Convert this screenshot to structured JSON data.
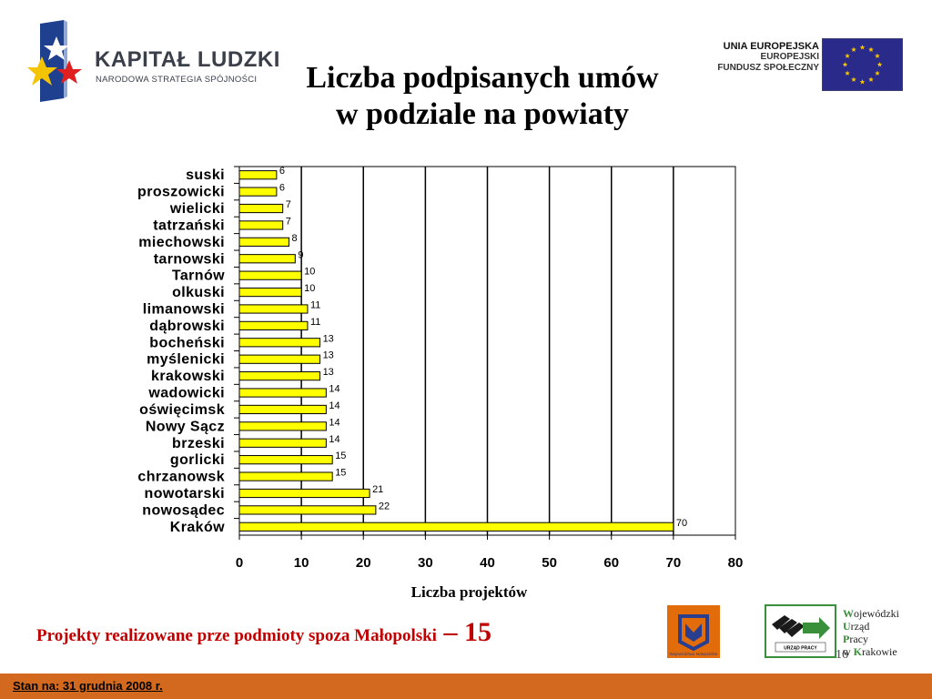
{
  "header": {
    "logo_left": {
      "name": "KAPITAŁ LUDZKI",
      "subtitle": "NARODOWA STRATEGIA SPÓJNOŚCI"
    },
    "logo_right": {
      "title": "UNIA EUROPEJSKA",
      "line1": "EUROPEJSKI",
      "line2": "FUNDUSZ SPOŁECZNY"
    },
    "title_line1": "Liczba podpisanych umów",
    "title_line2": "w podziale na powiaty"
  },
  "chart_data": {
    "type": "bar",
    "orientation": "horizontal",
    "categories": [
      "suski",
      "proszowicki",
      "wielicki",
      "tatrzański",
      "miechowski",
      "tarnowski",
      "Tarnów",
      "olkuski",
      "limanowski",
      "dąbrowski",
      "bocheński",
      "myślenicki",
      "krakowski",
      "wadowicki",
      "oświęcimsk",
      "Nowy Sącz",
      "brzeski",
      "gorlicki",
      "chrzanowsk",
      "nowotarski",
      "nowosądec",
      "Kraków"
    ],
    "values": [
      6,
      6,
      7,
      7,
      8,
      9,
      10,
      10,
      11,
      11,
      13,
      13,
      13,
      14,
      14,
      14,
      14,
      15,
      15,
      21,
      22,
      70
    ],
    "xlabel": "Liczba projektów",
    "xlim": [
      0,
      80
    ],
    "xticks": [
      0,
      10,
      20,
      30,
      40,
      50,
      60,
      70,
      80
    ],
    "grid": "vertical",
    "data_labels": true,
    "bar_color": "#ffff00",
    "bar_edge": "#000000"
  },
  "footnote": {
    "text": "Projekty realizowane prze podmioty spoza Małopolski",
    "dash": " – ",
    "number": "15",
    "color": "#c00000"
  },
  "footer": {
    "wup": {
      "line1_initial": "W",
      "line1_rest": "ojewódzki",
      "line2_initial": "U",
      "line2_rest": "rząd",
      "line3_initial": "P",
      "line3_rest": "racy",
      "line4_initial": "K",
      "line4_prefix": "w ",
      "line4_rest": "rakowie",
      "badge": "URZĄD PRACY"
    },
    "malopolska_badge": "Województwo Małopolskie",
    "page_number": "16",
    "as_of": "Stan na:  31 grudnia 2008 r.",
    "bar_color": "#d2691e"
  }
}
